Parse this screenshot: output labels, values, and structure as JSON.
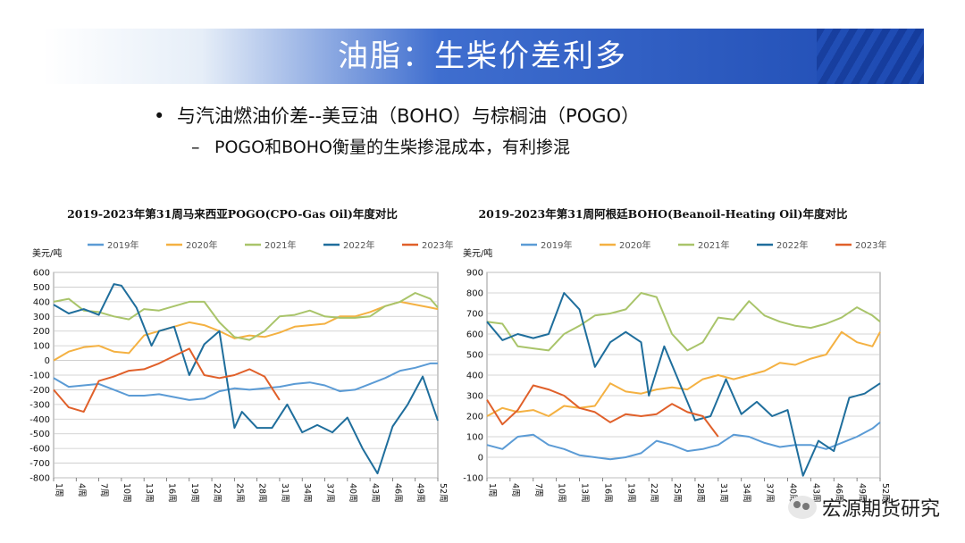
{
  "slide": {
    "title": "油脂：生柴价差利多",
    "bullet": "与汽油燃油价差--美豆油（BOHO）与棕榈油（POGO）",
    "sub_bullet": "POGO和BOHO衡量的生柴掺混成本，有利掺混",
    "watermark": "宏源期货研究"
  },
  "legend_colors": {
    "2019年": "#5b9bd5",
    "2020年": "#f4b142",
    "2021年": "#a9c46a",
    "2022年": "#1f6e9c",
    "2023年": "#e0602a"
  },
  "chart_data": [
    {
      "type": "line",
      "title": "2019-2023年第31周马来西亚POGO(CPO-Gas Oil)年度对比",
      "ylabel": "美元/吨",
      "ylim": [
        -800,
        600
      ],
      "yticks": [
        -800,
        -700,
        -600,
        -500,
        -400,
        -300,
        -200,
        -100,
        0,
        100,
        200,
        300,
        400,
        500,
        600
      ],
      "xlim": [
        1,
        52
      ],
      "xticks": [
        "1周",
        "4周",
        "7周",
        "10周",
        "13周",
        "16周",
        "19周",
        "22周",
        "25周",
        "28周",
        "31周",
        "34周",
        "37周",
        "40周",
        "43周",
        "46周",
        "49周",
        "52周"
      ],
      "xtick_weeks": [
        1,
        4,
        7,
        10,
        13,
        16,
        19,
        22,
        25,
        28,
        31,
        34,
        37,
        40,
        43,
        46,
        49,
        52
      ],
      "grid": true,
      "legend": "top",
      "series": [
        {
          "name": "2019年",
          "color": "#5b9bd5",
          "x": [
            1,
            3,
            5,
            7,
            9,
            11,
            13,
            15,
            17,
            19,
            21,
            23,
            25,
            27,
            29,
            31,
            33,
            35,
            37,
            39,
            41,
            43,
            45,
            47,
            49,
            51,
            52
          ],
          "y": [
            -120,
            -180,
            -170,
            -160,
            -200,
            -240,
            -240,
            -230,
            -250,
            -270,
            -260,
            -210,
            -190,
            -200,
            -190,
            -180,
            -160,
            -150,
            -170,
            -210,
            -200,
            -160,
            -120,
            -70,
            -50,
            -20,
            -20
          ]
        },
        {
          "name": "2020年",
          "color": "#f4b142",
          "x": [
            1,
            3,
            5,
            7,
            9,
            11,
            13,
            15,
            17,
            19,
            21,
            23,
            25,
            27,
            29,
            31,
            33,
            35,
            37,
            39,
            41,
            43,
            45,
            47,
            49,
            51,
            52
          ],
          "y": [
            0,
            60,
            90,
            100,
            60,
            50,
            170,
            200,
            230,
            260,
            240,
            200,
            150,
            170,
            160,
            190,
            230,
            240,
            250,
            300,
            300,
            330,
            370,
            400,
            380,
            360,
            350
          ]
        },
        {
          "name": "2021年",
          "color": "#a9c46a",
          "x": [
            1,
            3,
            5,
            7,
            9,
            11,
            13,
            15,
            17,
            19,
            21,
            23,
            25,
            27,
            29,
            31,
            33,
            35,
            37,
            39,
            41,
            43,
            45,
            47,
            49,
            51,
            52
          ],
          "y": [
            400,
            420,
            340,
            330,
            300,
            280,
            350,
            340,
            370,
            400,
            400,
            260,
            160,
            140,
            200,
            300,
            310,
            340,
            300,
            290,
            290,
            300,
            370,
            400,
            460,
            420,
            360
          ]
        },
        {
          "name": "2022年",
          "color": "#1f6e9c",
          "x": [
            1,
            3,
            5,
            7,
            9,
            10,
            12,
            14,
            15,
            17,
            19,
            21,
            23,
            25,
            26,
            28,
            30,
            32,
            34,
            36,
            38,
            40,
            42,
            44,
            46,
            48,
            50,
            52
          ],
          "y": [
            380,
            320,
            350,
            310,
            520,
            510,
            360,
            100,
            200,
            230,
            -100,
            110,
            200,
            -460,
            -350,
            -460,
            -460,
            -300,
            -490,
            -440,
            -490,
            -390,
            -600,
            -770,
            -450,
            -300,
            -110,
            -410
          ]
        },
        {
          "name": "2023年",
          "color": "#e0602a",
          "x": [
            1,
            3,
            5,
            7,
            9,
            11,
            13,
            15,
            17,
            19,
            21,
            23,
            25,
            27,
            29,
            31
          ],
          "y": [
            -200,
            -320,
            -350,
            -140,
            -110,
            -70,
            -60,
            -20,
            30,
            80,
            -100,
            -120,
            -100,
            -60,
            -110,
            -270
          ]
        }
      ]
    },
    {
      "type": "line",
      "title": "2019-2023年第31周阿根廷BOHO(Beanoil-Heating Oil)年度对比",
      "ylabel": "美元/吨",
      "ylim": [
        -100,
        900
      ],
      "yticks": [
        -100,
        0,
        100,
        200,
        300,
        400,
        500,
        600,
        700,
        800,
        900
      ],
      "xlim": [
        1,
        52
      ],
      "xticks": [
        "1周",
        "4周",
        "7周",
        "10周",
        "13周",
        "16周",
        "19周",
        "22周",
        "25周",
        "28周",
        "31周",
        "34周",
        "37周",
        "40周",
        "43周",
        "46周",
        "49周",
        "52周"
      ],
      "xtick_weeks": [
        1,
        4,
        7,
        10,
        13,
        16,
        19,
        22,
        25,
        28,
        31,
        34,
        37,
        40,
        43,
        46,
        49,
        52
      ],
      "grid": true,
      "legend": "top",
      "series": [
        {
          "name": "2019年",
          "color": "#5b9bd5",
          "x": [
            1,
            3,
            5,
            7,
            9,
            11,
            13,
            15,
            17,
            19,
            21,
            23,
            25,
            27,
            29,
            31,
            33,
            35,
            37,
            39,
            41,
            43,
            45,
            47,
            49,
            51,
            52
          ],
          "y": [
            60,
            40,
            100,
            110,
            60,
            40,
            10,
            0,
            -10,
            0,
            20,
            80,
            60,
            30,
            40,
            60,
            110,
            100,
            70,
            50,
            60,
            60,
            40,
            70,
            100,
            140,
            170
          ]
        },
        {
          "name": "2020年",
          "color": "#f4b142",
          "x": [
            1,
            3,
            5,
            7,
            9,
            11,
            13,
            15,
            17,
            19,
            21,
            23,
            25,
            27,
            29,
            31,
            33,
            35,
            37,
            39,
            41,
            43,
            45,
            47,
            49,
            51,
            52
          ],
          "y": [
            200,
            240,
            220,
            230,
            200,
            250,
            240,
            250,
            360,
            320,
            310,
            330,
            340,
            330,
            380,
            400,
            380,
            400,
            420,
            460,
            450,
            480,
            500,
            610,
            560,
            540,
            610
          ]
        },
        {
          "name": "2021年",
          "color": "#a9c46a",
          "x": [
            1,
            3,
            5,
            7,
            9,
            11,
            13,
            15,
            17,
            19,
            21,
            23,
            25,
            27,
            29,
            31,
            33,
            35,
            37,
            39,
            41,
            43,
            45,
            47,
            49,
            51,
            52
          ],
          "y": [
            660,
            650,
            540,
            530,
            520,
            600,
            640,
            690,
            700,
            720,
            800,
            780,
            600,
            520,
            560,
            680,
            670,
            760,
            690,
            660,
            640,
            630,
            650,
            680,
            730,
            690,
            660
          ]
        },
        {
          "name": "2022年",
          "color": "#1f6e9c",
          "x": [
            1,
            3,
            5,
            7,
            9,
            11,
            13,
            15,
            17,
            19,
            21,
            22,
            24,
            26,
            28,
            30,
            32,
            34,
            36,
            38,
            40,
            42,
            44,
            46,
            48,
            50,
            52
          ],
          "y": [
            660,
            570,
            600,
            580,
            600,
            800,
            720,
            440,
            560,
            610,
            560,
            300,
            540,
            360,
            180,
            200,
            380,
            210,
            270,
            200,
            230,
            -90,
            80,
            30,
            290,
            310,
            360
          ]
        },
        {
          "name": "2023年",
          "color": "#e0602a",
          "x": [
            1,
            3,
            5,
            7,
            9,
            11,
            13,
            15,
            17,
            19,
            21,
            23,
            25,
            27,
            29,
            31
          ],
          "y": [
            280,
            160,
            230,
            350,
            330,
            300,
            240,
            220,
            170,
            210,
            200,
            210,
            260,
            220,
            200,
            100
          ]
        }
      ]
    }
  ]
}
